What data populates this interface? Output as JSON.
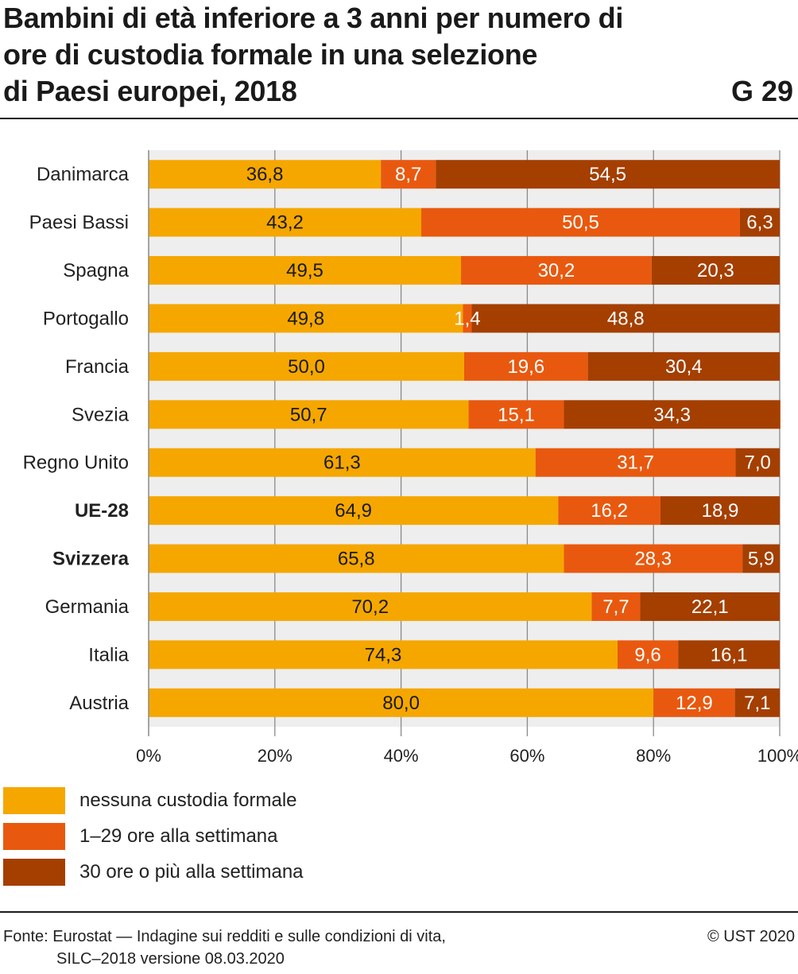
{
  "header": {
    "title_lines": [
      "Bambini di età inferiore a 3 anni per numero di",
      "ore di custodia formale in una selezione",
      "di Paesi europei, 2018"
    ],
    "chart_number": "G 29"
  },
  "chart_data": {
    "type": "bar",
    "orientation": "horizontal",
    "stacked": true,
    "title": "Bambini di età inferiore a 3 anni per numero di ore di custodia formale in una selezione di Paesi europei, 2018",
    "categories": [
      "Danimarca",
      "Paesi Bassi",
      "Spagna",
      "Portogallo",
      "Francia",
      "Svezia",
      "Regno Unito",
      "UE-28",
      "Svizzera",
      "Germania",
      "Italia",
      "Austria"
    ],
    "bold_categories": [
      "UE-28",
      "Svizzera"
    ],
    "series": [
      {
        "name": "nessuna custodia formale",
        "color": "#f5a700",
        "label_color": "#1a1a1a",
        "values": [
          36.8,
          43.2,
          49.5,
          49.8,
          50.0,
          50.7,
          61.3,
          64.9,
          65.8,
          70.2,
          74.3,
          80.0
        ],
        "labels": [
          "36,8",
          "43,2",
          "49,5",
          "49,8",
          "50,0",
          "50,7",
          "61,3",
          "64,9",
          "65,8",
          "70,2",
          "74,3",
          "80,0"
        ]
      },
      {
        "name": "1–29 ore alla settimana",
        "color": "#e8590f",
        "label_color": "#ffffff",
        "values": [
          8.7,
          50.5,
          30.2,
          1.4,
          19.6,
          15.1,
          31.7,
          16.2,
          28.3,
          7.7,
          9.6,
          12.9
        ],
        "labels": [
          "8,7",
          "50,5",
          "30,2",
          "1,4",
          "19,6",
          "15,1",
          "31,7",
          "16,2",
          "28,3",
          "7,7",
          "9,6",
          "12,9"
        ]
      },
      {
        "name": "30 ore o più alla settimana",
        "color": "#a43f00",
        "label_color": "#ffffff",
        "values": [
          54.5,
          6.3,
          20.3,
          48.8,
          30.4,
          34.3,
          7.0,
          18.9,
          5.9,
          22.1,
          16.1,
          7.1
        ],
        "labels": [
          "54,5",
          "6,3",
          "20,3",
          "48,8",
          "30,4",
          "34,3",
          "7,0",
          "18,9",
          "5,9",
          "22,1",
          "16,1",
          "7,1"
        ]
      }
    ],
    "xlim": [
      0,
      100
    ],
    "xticks": [
      0,
      20,
      40,
      60,
      80,
      100
    ],
    "xtick_labels": [
      "0%",
      "20%",
      "40%",
      "60%",
      "80%",
      "100%"
    ],
    "grid": true,
    "plot_background": "#eeeeee",
    "legend_position": "bottom-left"
  },
  "footer": {
    "source_lines": [
      "Fonte: Eurostat — Indagine sui redditi e sulle condizioni di vita,",
      "SILC–2018 versione 08.03.2020"
    ],
    "copyright": "© UST 2020"
  }
}
